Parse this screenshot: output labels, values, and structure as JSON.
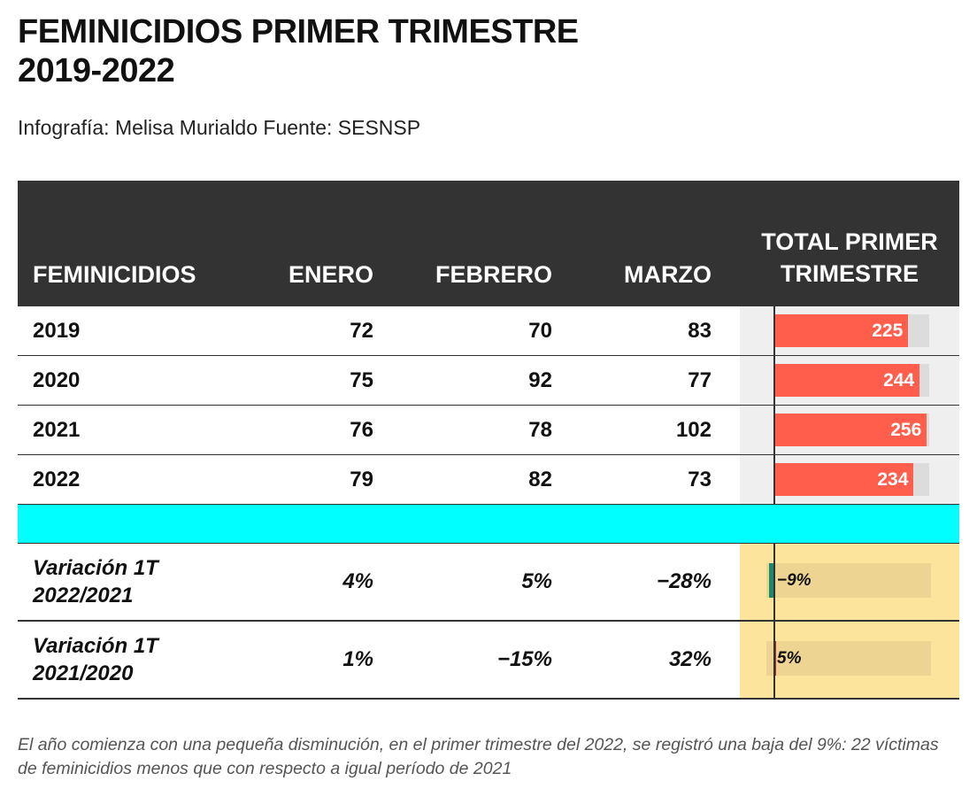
{
  "title_line1": "FEMINICIDIOS PRIMER TRIMESTRE",
  "title_line2": "2019-2022",
  "subtitle": "Infografía: Melisa Murialdo Fuente: SESNSP",
  "note": "El año comienza con una pequeña disminución, en el primer trimestre del 2022, se registró una baja del 9%: 22 víctimas de feminicidios menos que con respecto a igual período de 2021",
  "colors": {
    "header_bg": "#333333",
    "bar": "#fe5e4b",
    "separator": "#00ffff",
    "variation_bg": "#fde49d",
    "negative": "#1a8a6e",
    "positive": "#c0262d"
  },
  "chart_data": {
    "type": "table",
    "columns": [
      "FEMINICIDIOS",
      "ENERO",
      "FEBRERO",
      "MARZO",
      "TOTAL PRIMER TRIMESTRE"
    ],
    "bar_max": 260,
    "rows": [
      {
        "year": "2019",
        "enero": "72",
        "febrero": "70",
        "marzo": "83",
        "total": 225,
        "total_label": "225"
      },
      {
        "year": "2020",
        "enero": "75",
        "febrero": "92",
        "marzo": "77",
        "total": 244,
        "total_label": "244"
      },
      {
        "year": "2021",
        "enero": "76",
        "febrero": "78",
        "marzo": "102",
        "total": 256,
        "total_label": "256"
      },
      {
        "year": "2022",
        "enero": "79",
        "febrero": "82",
        "marzo": "73",
        "total": 234,
        "total_label": "234"
      }
    ],
    "variation_max": 100,
    "variations": [
      {
        "label_line1": "Variación 1T",
        "label_line2": "2022/2021",
        "enero": "4%",
        "febrero": "5%",
        "marzo": "−28%",
        "total": -9,
        "total_label": "−9%"
      },
      {
        "label_line1": "Variación 1T",
        "label_line2": "2021/2020",
        "enero": "1%",
        "febrero": "−15%",
        "marzo": "32%",
        "total": 5,
        "total_label": "5%"
      }
    ]
  }
}
